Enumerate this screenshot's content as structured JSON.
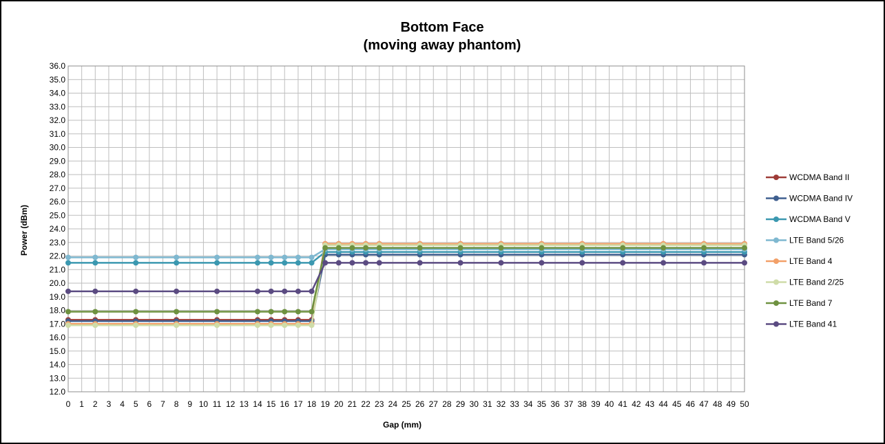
{
  "chart_data": {
    "type": "line",
    "title": "Bottom Face",
    "subtitle": "(moving away phantom)",
    "xlabel": "Gap (mm)",
    "ylabel": "Power (dBm)",
    "ylim": [
      12.0,
      36.0
    ],
    "ytick_step": 1.0,
    "grid": true,
    "legend_position": "right",
    "categories": [
      "0",
      "1",
      "2",
      "3",
      "4",
      "5",
      "6",
      "7",
      "8",
      "9",
      "10",
      "11",
      "12",
      "13",
      "14",
      "15",
      "16",
      "17",
      "18",
      "19",
      "20",
      "21",
      "22",
      "23",
      "24",
      "25",
      "26",
      "27",
      "28",
      "29",
      "30",
      "31",
      "32",
      "33",
      "34",
      "35",
      "36",
      "37",
      "38",
      "39",
      "40",
      "41",
      "42",
      "43",
      "44",
      "45",
      "46",
      "47",
      "48",
      "49",
      "50"
    ],
    "series": [
      {
        "name": "WCDMA Band II",
        "color": "#9E3B37",
        "x": [
          0,
          2,
          5,
          8,
          11,
          14,
          15,
          16,
          17,
          18,
          19,
          20,
          21,
          22,
          23,
          26,
          29,
          32,
          35,
          38,
          41,
          44,
          47,
          50
        ],
        "y": [
          17.3,
          17.3,
          17.3,
          17.3,
          17.3,
          17.3,
          17.3,
          17.3,
          17.3,
          17.3,
          22.9,
          22.9,
          22.9,
          22.9,
          22.9,
          22.9,
          22.9,
          22.9,
          22.9,
          22.9,
          22.9,
          22.9,
          22.9,
          22.9
        ]
      },
      {
        "name": "WCDMA Band IV",
        "color": "#3F5F8F",
        "x": [
          0,
          2,
          5,
          8,
          11,
          14,
          15,
          16,
          17,
          18,
          19,
          20,
          21,
          22,
          23,
          26,
          29,
          32,
          35,
          38,
          41,
          44,
          47,
          50
        ],
        "y": [
          17.2,
          17.2,
          17.2,
          17.2,
          17.2,
          17.2,
          17.2,
          17.2,
          17.2,
          17.2,
          22.1,
          22.1,
          22.1,
          22.1,
          22.1,
          22.1,
          22.1,
          22.1,
          22.1,
          22.1,
          22.1,
          22.1,
          22.1,
          22.1
        ]
      },
      {
        "name": "WCDMA Band V",
        "color": "#3B98B0",
        "x": [
          0,
          2,
          5,
          8,
          11,
          14,
          15,
          16,
          17,
          18,
          19,
          20,
          21,
          22,
          23,
          26,
          29,
          32,
          35,
          38,
          41,
          44,
          47,
          50
        ],
        "y": [
          21.5,
          21.5,
          21.5,
          21.5,
          21.5,
          21.5,
          21.5,
          21.5,
          21.5,
          21.5,
          22.3,
          22.3,
          22.3,
          22.3,
          22.3,
          22.3,
          22.3,
          22.3,
          22.3,
          22.3,
          22.3,
          22.3,
          22.3,
          22.3
        ]
      },
      {
        "name": "LTE Band 5/26",
        "color": "#7FB8D0",
        "x": [
          0,
          2,
          5,
          8,
          11,
          14,
          15,
          16,
          17,
          18,
          19,
          20,
          21,
          22,
          23,
          26,
          29,
          32,
          35,
          38,
          41,
          44,
          47,
          50
        ],
        "y": [
          21.9,
          21.9,
          21.9,
          21.9,
          21.9,
          21.9,
          21.9,
          21.9,
          21.9,
          21.9,
          22.5,
          22.5,
          22.5,
          22.5,
          22.5,
          22.5,
          22.5,
          22.5,
          22.5,
          22.5,
          22.5,
          22.5,
          22.5,
          22.5
        ]
      },
      {
        "name": "LTE Band 4",
        "color": "#F2A068",
        "x": [
          0,
          2,
          5,
          8,
          11,
          14,
          15,
          16,
          17,
          18,
          19,
          20,
          21,
          22,
          23,
          26,
          29,
          32,
          35,
          38,
          41,
          44,
          47,
          50
        ],
        "y": [
          17.0,
          17.0,
          17.0,
          17.0,
          17.0,
          17.0,
          17.0,
          17.0,
          17.0,
          17.0,
          22.9,
          22.9,
          22.9,
          22.9,
          22.9,
          22.9,
          22.9,
          22.9,
          22.9,
          22.9,
          22.9,
          22.9,
          22.9,
          22.9
        ]
      },
      {
        "name": "LTE Band 2/25",
        "color": "#CFDCA8",
        "x": [
          0,
          2,
          5,
          8,
          11,
          14,
          15,
          16,
          17,
          18,
          19,
          20,
          21,
          22,
          23,
          26,
          29,
          32,
          35,
          38,
          41,
          44,
          47,
          50
        ],
        "y": [
          16.9,
          16.9,
          16.9,
          16.9,
          16.9,
          16.9,
          16.9,
          16.9,
          16.9,
          16.9,
          22.8,
          22.8,
          22.8,
          22.8,
          22.8,
          22.8,
          22.8,
          22.8,
          22.8,
          22.8,
          22.8,
          22.8,
          22.8,
          22.8
        ]
      },
      {
        "name": "LTE Band 7",
        "color": "#6E9140",
        "x": [
          0,
          2,
          5,
          8,
          11,
          14,
          15,
          16,
          17,
          18,
          19,
          20,
          21,
          22,
          23,
          26,
          29,
          32,
          35,
          38,
          41,
          44,
          47,
          50
        ],
        "y": [
          17.9,
          17.9,
          17.9,
          17.9,
          17.9,
          17.9,
          17.9,
          17.9,
          17.9,
          17.9,
          22.6,
          22.6,
          22.6,
          22.6,
          22.6,
          22.6,
          22.6,
          22.6,
          22.6,
          22.6,
          22.6,
          22.6,
          22.6,
          22.6
        ]
      },
      {
        "name": "LTE Band 41",
        "color": "#5B4B82",
        "x": [
          0,
          2,
          5,
          8,
          11,
          14,
          15,
          16,
          17,
          18,
          19,
          20,
          21,
          22,
          23,
          26,
          29,
          32,
          35,
          38,
          41,
          44,
          47,
          50
        ],
        "y": [
          19.4,
          19.4,
          19.4,
          19.4,
          19.4,
          19.4,
          19.4,
          19.4,
          19.4,
          19.4,
          21.5,
          21.5,
          21.5,
          21.5,
          21.5,
          21.5,
          21.5,
          21.5,
          21.5,
          21.5,
          21.5,
          21.5,
          21.5,
          21.5
        ]
      }
    ]
  }
}
